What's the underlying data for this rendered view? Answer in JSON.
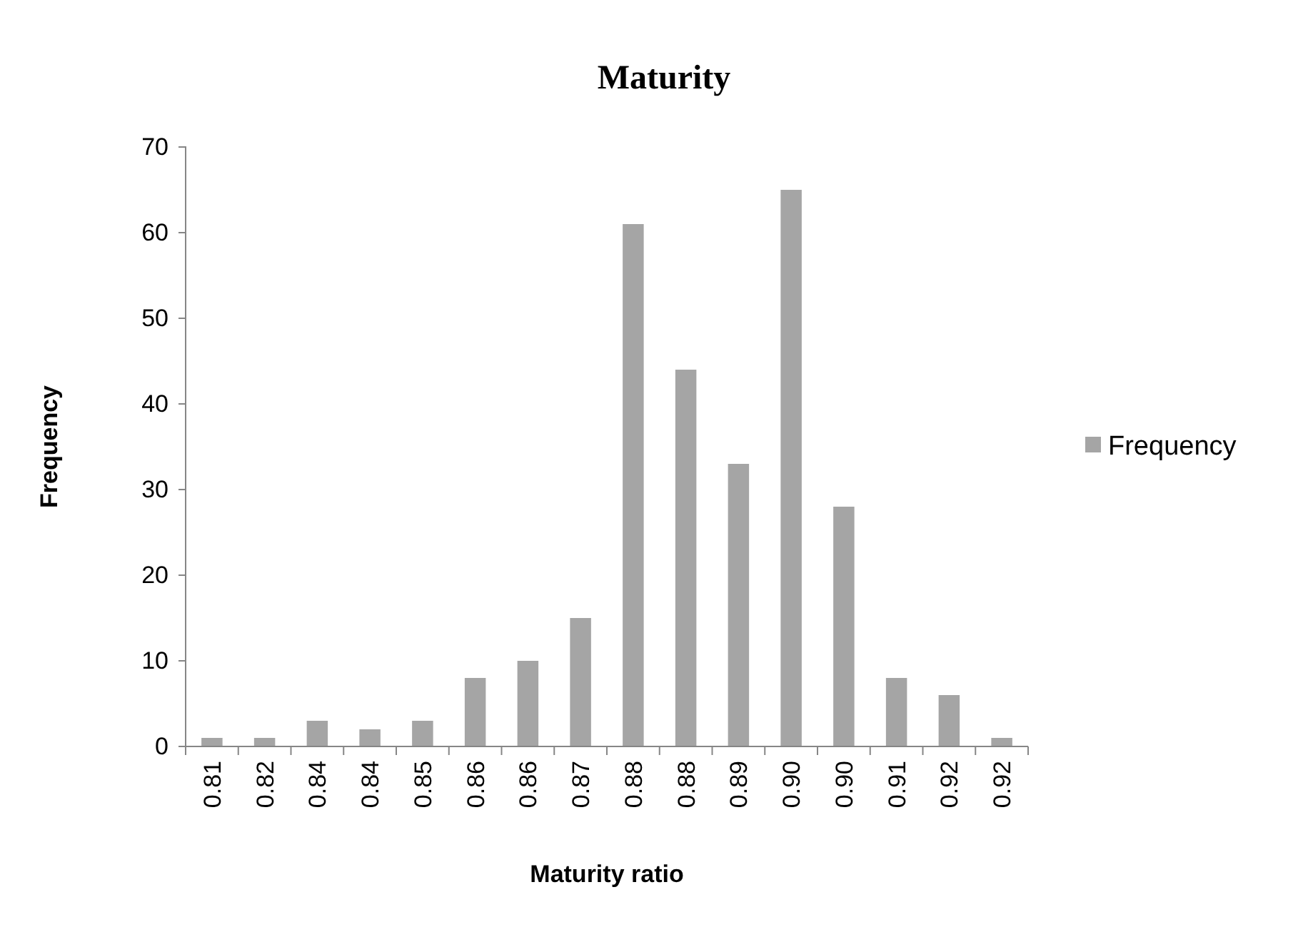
{
  "chart_data": {
    "type": "bar",
    "title": "Maturity",
    "xlabel": "Maturity ratio",
    "ylabel": "Frequency",
    "categories": [
      "0.81",
      "0.82",
      "0.84",
      "0.84",
      "0.85",
      "0.86",
      "0.86",
      "0.87",
      "0.88",
      "0.88",
      "0.89",
      "0.90",
      "0.90",
      "0.91",
      "0.92",
      "0.92"
    ],
    "series": [
      {
        "name": "Frequency",
        "color": "#a5a5a5",
        "values": [
          1,
          1,
          3,
          2,
          3,
          8,
          10,
          15,
          61,
          44,
          33,
          65,
          28,
          8,
          6,
          1
        ]
      }
    ],
    "ylim": [
      0,
      70
    ],
    "yticks": [
      0,
      10,
      20,
      30,
      40,
      50,
      60,
      70
    ],
    "grid": false,
    "legend": "right"
  }
}
